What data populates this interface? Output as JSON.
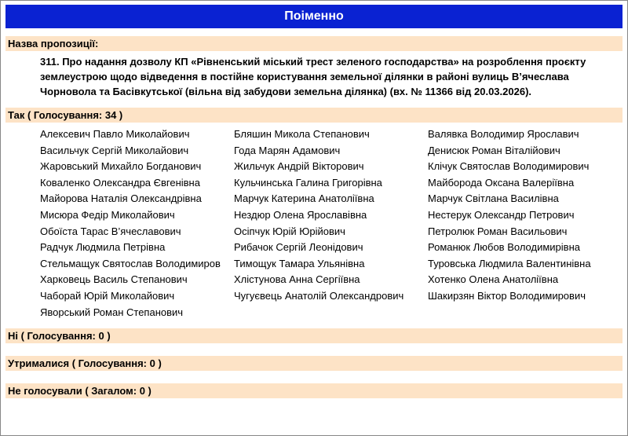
{
  "header": {
    "title": "Поіменно"
  },
  "proposal": {
    "label": "Назва пропозиції:",
    "text": "311. Про надання дозволу КП «Рівненський міський трест зеленого господарства» на розроблення проєкту землеустрою щодо відведення в постійне користування земельної ділянки в районі вулиць В’ячеслава Чорновола та Басівкутської (вільна від забудови земельна ділянка) (вх. № 11366 від 20.03.2026)."
  },
  "yes": {
    "label": "Так ( Голосування: 34 )",
    "rows": [
      [
        "Алексевич Павло Миколайович",
        "Бляшин Микола Степанович",
        "Валявка Володимир Ярославич"
      ],
      [
        "Васильчук Сергій Миколайович",
        "Года Марян Адамович",
        "Денисюк Роман Віталійович"
      ],
      [
        "Жаровський Михайло Богданович",
        "Жильчук Андрій Вікторович",
        "Клічук Святослав Володимирович"
      ],
      [
        "Коваленко Олександра Євгенівна",
        "Кульчинська Галина Григорівна",
        "Майборода Оксана Валеріївна"
      ],
      [
        "Майорова Наталія Олександрівна",
        "Марчук Катерина Анатоліївна",
        "Марчук Світлана Василівна"
      ],
      [
        "Мисюра Федір Миколайович",
        "Нездюр Олена Ярославівна",
        "Нестерук Олександр Петрович"
      ],
      [
        "Обоїста Тарас В’ячеславович",
        "Осіпчук Юрій Юрійович",
        "Петролюк Роман Васильович"
      ],
      [
        "Радчук Людмила Петрівна",
        "Рибачок Сергій Леонідович",
        "Романюк Любов Володимирівна"
      ],
      [
        "Стельмащук Святослав Володимиров",
        "Тимощук Тамара Ульянівна",
        "Туровська Людмила Валентинівна"
      ],
      [
        "Харковець Василь Степанович",
        "Хлістунова Анна Сергіївна",
        "Хотенко Олена Анатоліївна"
      ],
      [
        "Чaборай Юрій Миколайович",
        "Чугуєвець Анатолій Олександрович",
        "Шакирзян Віктор Володимирович"
      ],
      [
        "Яворський Роман Степанович"
      ]
    ]
  },
  "no": {
    "label": "Ні ( Голосування: 0 )"
  },
  "abstained": {
    "label": "Утрималися ( Голосування: 0 )"
  },
  "not_voted": {
    "label": "Не голосували ( Загалом: 0 )"
  }
}
